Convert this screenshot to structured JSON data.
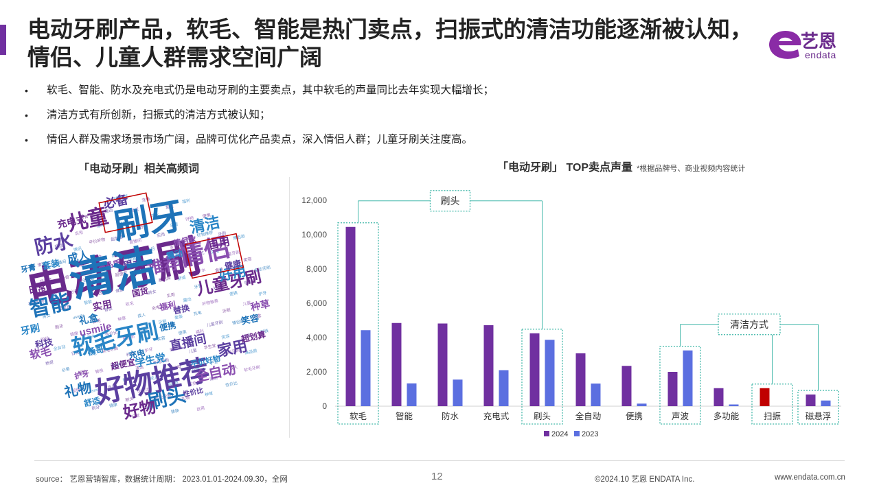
{
  "header": {
    "title": "电动牙刷产品，软毛、智能是热门卖点，扫振式的清洁功能逐渐被认知，情侣、儿童人群需求空间广阔",
    "logo_cn": "艺恩",
    "logo_en": "endata"
  },
  "bullets": [
    "软毛、智能、防水及充电式仍是电动牙刷的主要卖点，其中软毛的声量同比去年实现大幅增长；",
    "清洁方式有所创新，扫振式的清洁方式被认知；",
    "情侣人群及需求场景市场广阔，品牌可优化产品卖点，深入情侣人群；儿童牙刷关注度高。"
  ],
  "bullet_symbol": "•",
  "wordcloud": {
    "title": "「电动牙刷」相关高频词",
    "words": [
      "电动牙刷",
      "刷牙",
      "好物推荐",
      "软毛牙刷",
      "情侣",
      "儿童",
      "智能",
      "防水",
      "清洁",
      "推荐",
      "儿童牙刷",
      "刷头",
      "家用",
      "好用",
      "全自动",
      "好物",
      "礼物",
      "直播间",
      "学生党",
      "usmile",
      "充电式",
      "成人",
      "男女",
      "牙刷",
      "软毛",
      "实用",
      "礼盒",
      "必备",
      "套装",
      "种草",
      "超划算",
      "笑容",
      "健康",
      "震动",
      "高品质",
      "国货",
      "便携",
      "替换",
      "舒适",
      "护牙",
      "超便宜",
      "充电",
      "性价比",
      "平价好物",
      "情侣款",
      "日常",
      "牙膏",
      "科技",
      "杨哥",
      "福利",
      "自用",
      "清洁"
    ],
    "colors": [
      "#6a2a8c",
      "#1e73b8",
      "#5b3fa0",
      "#2a86c7",
      "#8a4fb0"
    ]
  },
  "chart_data": {
    "type": "bar",
    "title": "「电动牙刷」 TOP卖点声量",
    "note": "*根据品牌号、商业视频内容统计",
    "categories": [
      "软毛",
      "智能",
      "防水",
      "充电式",
      "刷头",
      "全自动",
      "便携",
      "声波",
      "多功能",
      "扫振",
      "磁悬浮"
    ],
    "series": [
      {
        "name": "2024",
        "color": "#7030a0",
        "values": [
          10450,
          4850,
          4820,
          4720,
          4250,
          3080,
          2350,
          2000,
          1050,
          1050,
          680
        ]
      },
      {
        "name": "2023",
        "color": "#5b6fe0",
        "values": [
          4430,
          1330,
          1550,
          2100,
          3870,
          1320,
          150,
          3250,
          100,
          0,
          330
        ]
      }
    ],
    "highlight": {
      "category": "扫振",
      "series": "2024",
      "color": "#c00000"
    },
    "ylim": [
      0,
      12000
    ],
    "yticks": [
      "0",
      "2,000",
      "4,000",
      "6,000",
      "8,000",
      "10,000",
      "12,000"
    ],
    "groups": [
      {
        "label": "刷头",
        "members": [
          "软毛",
          "刷头"
        ]
      },
      {
        "label": "清洁方式",
        "members": [
          "声波",
          "扫振",
          "磁悬浮"
        ]
      }
    ],
    "legend": "bottom-center",
    "grid": false
  },
  "footer": {
    "source": "source： 艺恩营销智库，数据统计周期： 2023.01.01-2024.09.30，全网",
    "page": "12",
    "copyright": "©2024.10  艺恩 ENDATA Inc.",
    "url": "www.endata.com.cn"
  }
}
